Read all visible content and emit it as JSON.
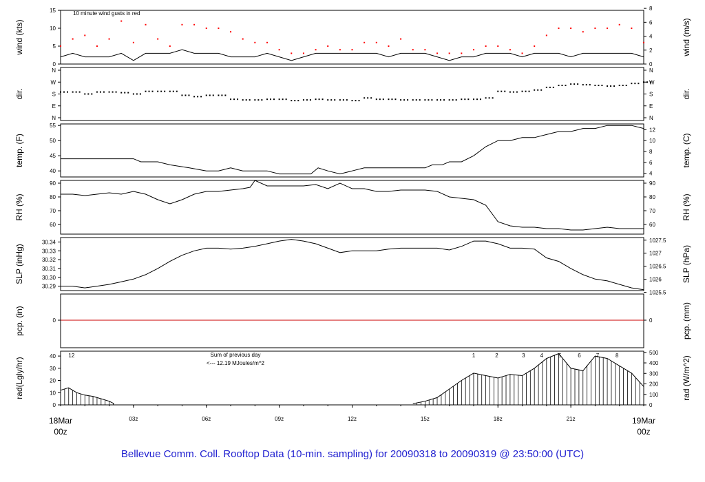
{
  "title": "Bellevue Comm. Coll. Rooftop Data (10-min. sampling) for 20090318  to  20090319 @ 23:50:00  (UTC)",
  "colors": {
    "gust": "#ff0000",
    "precip_line": "#cc0000",
    "annotation": "#9900cc",
    "date_label": "#ff0000",
    "caption": "#2020d0",
    "axes": "#000000"
  },
  "chart_data": [
    {
      "type": "line",
      "panel": "wind",
      "ylabel_left": "wind (kts)",
      "ylabel_right": "wind (m/s)",
      "annotation": "10  minute wind gusts in red",
      "ylim": [
        0,
        15
      ],
      "yticks_left": [
        "0",
        "5",
        "10",
        "15"
      ],
      "yticks_right": [
        "0",
        "2",
        "4",
        "6",
        "8"
      ],
      "series": [
        {
          "name": "10  minute wind gusts in red",
          "style": "dots",
          "color": "#ff0000",
          "x": [
            0,
            0.5,
            1,
            1.5,
            2,
            2.5,
            3,
            3.5,
            4,
            4.5,
            5,
            5.5,
            6,
            6.5,
            7,
            7.5,
            8,
            8.5,
            9,
            9.5,
            10,
            10.5,
            11,
            11.5,
            12,
            12.5,
            13,
            13.5,
            14,
            14.5,
            15,
            15.5,
            16,
            16.5,
            17,
            17.5,
            18,
            18.5,
            19,
            19.5,
            20,
            20.5,
            21,
            21.5,
            22,
            22.5,
            23,
            23.5,
            24
          ],
          "values": [
            5,
            7,
            8,
            5,
            7,
            12,
            6,
            11,
            7,
            5,
            11,
            11,
            10,
            10,
            9,
            7,
            6,
            6,
            4,
            3,
            3,
            4,
            5,
            4,
            4,
            6,
            6,
            5,
            7,
            4,
            4,
            3,
            3,
            3,
            4,
            5,
            5,
            4,
            3,
            5,
            8,
            10,
            10,
            9,
            10,
            10,
            11,
            10,
            6
          ]
        },
        {
          "name": "wind speed",
          "style": "line",
          "color": "#000000",
          "x": [
            0,
            0.5,
            1,
            1.5,
            2,
            2.5,
            3,
            3.5,
            4,
            4.5,
            5,
            5.5,
            6,
            6.5,
            7,
            7.5,
            8,
            8.5,
            9,
            9.5,
            10,
            10.5,
            11,
            11.5,
            12,
            12.5,
            13,
            13.5,
            14,
            14.5,
            15,
            15.5,
            16,
            16.5,
            17,
            17.5,
            18,
            18.5,
            19,
            19.5,
            20,
            20.5,
            21,
            21.5,
            22,
            22.5,
            23,
            23.5,
            24
          ],
          "values": [
            2,
            3,
            2,
            2,
            2,
            3,
            1,
            3,
            3,
            3,
            4,
            3,
            3,
            3,
            2,
            2,
            2,
            3,
            2,
            1,
            2,
            3,
            3,
            3,
            3,
            3,
            3,
            2,
            3,
            3,
            3,
            2,
            1,
            2,
            2,
            3,
            3,
            3,
            2,
            3,
            3,
            3,
            2,
            3,
            3,
            3,
            3,
            3,
            2
          ]
        }
      ]
    },
    {
      "type": "scatter",
      "panel": "dir",
      "ylabel_left": "dir.",
      "ylabel_right": "dir.",
      "yticks_left": [
        "N",
        "E",
        "S",
        "W",
        "N"
      ],
      "yticks_right": [
        "N",
        "E",
        "S",
        "W",
        "N"
      ],
      "ylim": [
        0,
        360
      ],
      "x": [
        0,
        0.5,
        1,
        1.5,
        2,
        2.5,
        3,
        3.5,
        4,
        4.5,
        5,
        5.5,
        6,
        6.5,
        7,
        7.5,
        8,
        8.5,
        9,
        9.5,
        10,
        10.5,
        11,
        11.5,
        12,
        12.5,
        13,
        13.5,
        14,
        14.5,
        15,
        15.5,
        16,
        16.5,
        17,
        17.5,
        18,
        18.5,
        19,
        19.5,
        20,
        20.5,
        21,
        21.5,
        22,
        22.5,
        23,
        23.5,
        24
      ],
      "values": [
        195,
        195,
        180,
        195,
        195,
        190,
        180,
        200,
        200,
        200,
        170,
        160,
        170,
        170,
        140,
        135,
        135,
        140,
        140,
        130,
        135,
        140,
        135,
        135,
        130,
        150,
        140,
        140,
        135,
        135,
        135,
        135,
        135,
        140,
        140,
        150,
        200,
        195,
        200,
        210,
        230,
        245,
        255,
        250,
        245,
        240,
        245,
        260,
        270
      ]
    },
    {
      "type": "line",
      "panel": "temp",
      "ylabel_left": "temp. (F)",
      "ylabel_right": "temp. (C)",
      "ylim": [
        38,
        55.5
      ],
      "yticks_left": [
        "40",
        "45",
        "50",
        "55"
      ],
      "yticks_right": [
        "4",
        "6",
        "8",
        "10",
        "12"
      ],
      "x": [
        0,
        1,
        2,
        3,
        3.3,
        4,
        4.5,
        5.3,
        6,
        6.5,
        7,
        7.5,
        8,
        8.5,
        9,
        9.5,
        10,
        10.3,
        10.6,
        11,
        11.5,
        12,
        12.5,
        13,
        14,
        15,
        15.3,
        15.7,
        16,
        16.5,
        17,
        17.5,
        18,
        18.5,
        19,
        19.5,
        20,
        20.5,
        21,
        21.5,
        22,
        22.5,
        23,
        23.5,
        24
      ],
      "values": [
        44,
        44,
        44,
        44,
        43,
        43,
        42,
        41,
        40,
        40,
        41,
        40,
        40,
        40,
        39,
        39,
        39,
        39,
        41,
        40,
        39,
        40,
        41,
        41,
        41,
        41,
        42,
        42,
        43,
        43,
        45,
        48,
        50,
        50,
        51,
        51,
        52,
        53,
        53,
        54,
        54,
        55,
        55,
        55,
        54
      ]
    },
    {
      "type": "line",
      "panel": "rh",
      "ylabel_left": "RH (%)",
      "ylabel_right": "RH (%)",
      "ylim": [
        53,
        92
      ],
      "yticks_left": [
        "60",
        "70",
        "80",
        "90"
      ],
      "yticks_right": [
        "60",
        "70",
        "80",
        "90"
      ],
      "x": [
        0,
        0.5,
        1,
        1.5,
        2,
        2.5,
        3,
        3.5,
        4,
        4.5,
        5,
        5.5,
        6,
        6.5,
        7,
        7.5,
        7.8,
        8,
        8.5,
        9,
        9.5,
        10,
        10.5,
        11,
        11.5,
        12,
        12.5,
        13,
        13.5,
        14,
        14.5,
        15,
        15.5,
        16,
        16.5,
        17,
        17.5,
        18,
        18.5,
        19,
        19.5,
        20,
        20.5,
        21,
        21.5,
        22,
        22.5,
        23,
        23.5,
        24
      ],
      "values": [
        82,
        82,
        81,
        82,
        83,
        82,
        84,
        82,
        78,
        75,
        78,
        82,
        84,
        84,
        85,
        86,
        87,
        92,
        88,
        88,
        88,
        88,
        89,
        86,
        90,
        86,
        86,
        84,
        84,
        85,
        85,
        85,
        84,
        80,
        79,
        78,
        74,
        62,
        59,
        58,
        58,
        57,
        57,
        56,
        56,
        57,
        58,
        57,
        57,
        57
      ]
    },
    {
      "type": "line",
      "panel": "slp",
      "ylabel_left": "SLP (inHg)",
      "ylabel_right": "SLP (hPa)",
      "ylim": [
        30.285,
        30.345
      ],
      "yticks_left": [
        "30.29",
        "30.30",
        "30.31",
        "30.32",
        "30.33",
        "30.34"
      ],
      "yticks_right": [
        "1025.5",
        "1026",
        "1026.5",
        "1027",
        "1027.5"
      ],
      "x": [
        0,
        0.5,
        1,
        1.5,
        2,
        2.5,
        3,
        3.5,
        4,
        4.5,
        5,
        5.5,
        6,
        6.5,
        7,
        7.5,
        8,
        8.5,
        9,
        9.5,
        10,
        10.5,
        11,
        11.5,
        12,
        12.5,
        13,
        13.5,
        14,
        14.5,
        15,
        15.5,
        16,
        16.5,
        17,
        17.5,
        18,
        18.5,
        19,
        19.5,
        20,
        20.5,
        21,
        21.5,
        22,
        22.5,
        23,
        23.5,
        24
      ],
      "values": [
        30.29,
        30.29,
        30.288,
        30.29,
        30.292,
        30.295,
        30.298,
        30.303,
        30.31,
        30.318,
        30.325,
        30.33,
        30.333,
        30.333,
        30.332,
        30.333,
        30.335,
        30.338,
        30.341,
        30.343,
        30.341,
        30.338,
        30.333,
        30.328,
        30.33,
        30.33,
        30.33,
        30.332,
        30.333,
        30.333,
        30.333,
        30.333,
        30.331,
        30.335,
        30.341,
        30.341,
        30.338,
        30.333,
        30.333,
        30.332,
        30.322,
        30.318,
        30.31,
        30.303,
        30.298,
        30.296,
        30.292,
        30.288,
        30.286
      ]
    },
    {
      "type": "line",
      "panel": "pcp",
      "ylabel_left": "pcp. (in)",
      "ylabel_right": "pcp. (mm)",
      "yticks_left": [
        "0"
      ],
      "yticks_right": [
        "0"
      ],
      "x": [
        0,
        24
      ],
      "values": [
        0,
        0
      ]
    },
    {
      "type": "bar",
      "panel": "rad",
      "ylabel_left": "rad(Lgly/hr)",
      "ylabel_right": "rad (W/m^2)",
      "ylim": [
        0,
        44
      ],
      "yticks_left": [
        "0",
        "10",
        "20",
        "30",
        "40"
      ],
      "yticks_right": [
        "0",
        "100",
        "200",
        "300",
        "400",
        "500"
      ],
      "annotations": [
        "Sum of previous day",
        "<--- 12.19 MJoules/m^2"
      ],
      "hour_markers": [
        "12",
        "1",
        "2",
        "3",
        "4",
        "5",
        "6",
        "7",
        "8"
      ],
      "x": [
        0,
        0.33,
        0.67,
        1,
        1.33,
        1.67,
        2,
        2.2,
        14.5,
        15,
        15.5,
        16,
        16.5,
        17,
        17.5,
        18,
        18.5,
        19,
        19.5,
        20,
        20.5,
        21,
        21.5,
        22,
        22.5,
        23,
        23.5,
        24
      ],
      "values": [
        12,
        14,
        10,
        8,
        7,
        5,
        3,
        1,
        1,
        3,
        6,
        13,
        20,
        26,
        24,
        22,
        25,
        24,
        30,
        38,
        42,
        30,
        28,
        40,
        38,
        32,
        26,
        15
      ]
    }
  ],
  "x_axis": {
    "ticks": [
      "03z",
      "06z",
      "09z",
      "12z",
      "15z",
      "18z",
      "21z"
    ],
    "start_label": [
      "18Mar",
      "00z"
    ],
    "end_label": [
      "19Mar",
      "00z"
    ]
  }
}
